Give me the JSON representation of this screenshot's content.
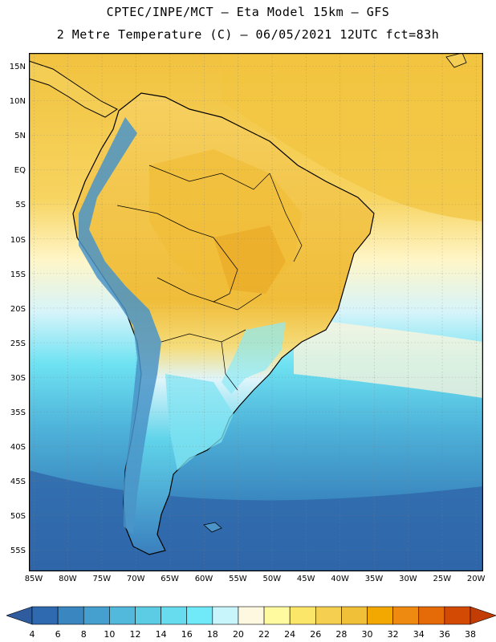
{
  "header": {
    "line1": "CPTEC/INPE/MCT –  Eta Model 15km – GFS",
    "line2": "2 Metre Temperature (C) – 06/05/2021 12UTC fct=83h"
  },
  "map": {
    "lat_labels": [
      "15N",
      "10N",
      "5N",
      "EQ",
      "5S",
      "10S",
      "15S",
      "20S",
      "25S",
      "30S",
      "35S",
      "40S",
      "45S",
      "50S",
      "55S"
    ],
    "lon_labels": [
      "85W",
      "80W",
      "75W",
      "70W",
      "65W",
      "60W",
      "55W",
      "50W",
      "45W",
      "40W",
      "35W",
      "30W",
      "25W",
      "20W"
    ],
    "ocean_warm_color": "#f5c842",
    "ocean_cold_color": "#2f6eb0",
    "land_outline_color": "#000000",
    "gridline_style": "dotted"
  },
  "colorbar": {
    "ticks": [
      "4",
      "6",
      "8",
      "10",
      "12",
      "14",
      "16",
      "18",
      "20",
      "22",
      "24",
      "26",
      "28",
      "30",
      "32",
      "34",
      "36",
      "38"
    ],
    "colors": [
      "#2f6ab0",
      "#3a86c0",
      "#45a0d0",
      "#52b8dc",
      "#5ccbe4",
      "#66dcee",
      "#70eaf8",
      "#c8f4fb",
      "#fff8e0",
      "#fffaa0",
      "#fbe66a",
      "#f5d050",
      "#efc038",
      "#f2a800",
      "#ef8a10",
      "#e56a08",
      "#d24a04"
    ],
    "low_end_color": "#2e5c9e",
    "high_end_color": "#c23c04"
  }
}
